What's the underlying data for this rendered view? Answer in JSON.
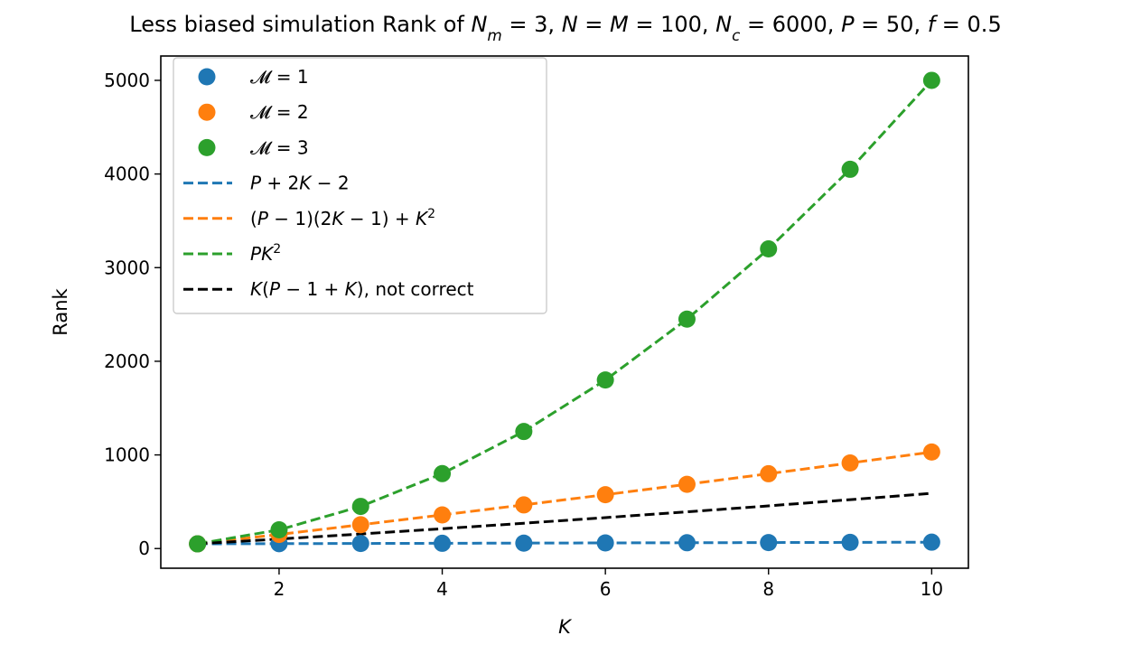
{
  "chart_data": {
    "type": "line",
    "title": "Less biased simulation Rank of N_m = 3, N = M = 100, N_c = 6000, P = 50, f = 0.5",
    "title_parts": [
      {
        "t": "Less biased simulation Rank of ",
        "i": false
      },
      {
        "t": "N",
        "i": true
      },
      {
        "t": "m",
        "i": true,
        "sub": true
      },
      {
        "t": " = 3, ",
        "i": false
      },
      {
        "t": "N",
        "i": true
      },
      {
        "t": " = ",
        "i": false
      },
      {
        "t": "M",
        "i": true
      },
      {
        "t": " = 100, ",
        "i": false
      },
      {
        "t": "N",
        "i": true
      },
      {
        "t": "c",
        "i": true,
        "sub": true
      },
      {
        "t": " = 6000, ",
        "i": false
      },
      {
        "t": "P",
        "i": true
      },
      {
        "t": " = 50, ",
        "i": false
      },
      {
        "t": "f",
        "i": true
      },
      {
        "t": " = 0.5",
        "i": false
      }
    ],
    "xlabel": "K",
    "ylabel": "Rank",
    "xlim": [
      0.55,
      10.45
    ],
    "ylim": [
      -210,
      5260
    ],
    "xticks": [
      2,
      4,
      6,
      8,
      10
    ],
    "yticks": [
      0,
      1000,
      2000,
      3000,
      4000,
      5000
    ],
    "grid": false,
    "legend_position": "upper-left",
    "colors": {
      "blue": "#1f77b4",
      "orange": "#ff7f0e",
      "green": "#2ca02c",
      "black": "#000000"
    },
    "scatter_series": [
      {
        "name": "𝓜 = 1",
        "color": "#1f77b4",
        "x": [
          1,
          2,
          3,
          4,
          5,
          6,
          7,
          8,
          9,
          10
        ],
        "y": [
          50,
          52,
          54,
          56,
          58,
          60,
          62,
          64,
          66,
          68
        ]
      },
      {
        "name": "𝓜 = 2",
        "color": "#ff7f0e",
        "x": [
          1,
          2,
          3,
          4,
          5,
          6,
          7,
          8,
          9,
          10
        ],
        "y": [
          50,
          151,
          254,
          359,
          466,
          575,
          686,
          799,
          914,
          1031
        ]
      },
      {
        "name": "𝓜 = 3",
        "color": "#2ca02c",
        "x": [
          1,
          2,
          3,
          4,
          5,
          6,
          7,
          8,
          9,
          10
        ],
        "y": [
          50,
          200,
          450,
          800,
          1250,
          1800,
          2450,
          3200,
          4050,
          5000
        ]
      }
    ],
    "line_series": [
      {
        "name": "P + 2K − 2",
        "color": "#1f77b4",
        "dashed": true,
        "x": [
          1,
          2,
          3,
          4,
          5,
          6,
          7,
          8,
          9,
          10
        ],
        "y": [
          50,
          52,
          54,
          56,
          58,
          60,
          62,
          64,
          66,
          68
        ]
      },
      {
        "name": "(P − 1)(2K − 1) + K²",
        "color": "#ff7f0e",
        "dashed": true,
        "x": [
          1,
          2,
          3,
          4,
          5,
          6,
          7,
          8,
          9,
          10
        ],
        "y": [
          50,
          151,
          254,
          359,
          466,
          575,
          686,
          799,
          914,
          1031
        ]
      },
      {
        "name": "PK²",
        "color": "#2ca02c",
        "dashed": true,
        "x": [
          1,
          2,
          3,
          4,
          5,
          6,
          7,
          8,
          9,
          10
        ],
        "y": [
          50,
          200,
          450,
          800,
          1250,
          1800,
          2450,
          3200,
          4050,
          5000
        ]
      },
      {
        "name": "K(P − 1 + K), not correct",
        "color": "#000000",
        "dashed": true,
        "x": [
          1,
          2,
          3,
          4,
          5,
          6,
          7,
          8,
          9,
          10
        ],
        "y": [
          50,
          102,
          156,
          212,
          270,
          330,
          392,
          456,
          522,
          590
        ]
      }
    ],
    "legend_entries": [
      {
        "kind": "marker",
        "color": "#1f77b4",
        "parts": [
          {
            "t": "𝓜",
            "i": false
          },
          {
            "t": " = 1",
            "i": false
          }
        ]
      },
      {
        "kind": "marker",
        "color": "#ff7f0e",
        "parts": [
          {
            "t": "𝓜",
            "i": false
          },
          {
            "t": " = 2",
            "i": false
          }
        ]
      },
      {
        "kind": "marker",
        "color": "#2ca02c",
        "parts": [
          {
            "t": "𝓜",
            "i": false
          },
          {
            "t": " = 3",
            "i": false
          }
        ]
      },
      {
        "kind": "dash",
        "color": "#1f77b4",
        "parts": [
          {
            "t": "P",
            "i": true
          },
          {
            "t": " + 2",
            "i": false
          },
          {
            "t": "K",
            "i": true
          },
          {
            "t": " − 2",
            "i": false
          }
        ]
      },
      {
        "kind": "dash",
        "color": "#ff7f0e",
        "parts": [
          {
            "t": "(",
            "i": false
          },
          {
            "t": "P",
            "i": true
          },
          {
            "t": " − 1)(2",
            "i": false
          },
          {
            "t": "K",
            "i": true
          },
          {
            "t": " − 1) + ",
            "i": false
          },
          {
            "t": "K",
            "i": true
          },
          {
            "t": "2",
            "i": false,
            "sup": true
          }
        ]
      },
      {
        "kind": "dash",
        "color": "#2ca02c",
        "parts": [
          {
            "t": "P",
            "i": true
          },
          {
            "t": "K",
            "i": true
          },
          {
            "t": "2",
            "i": false,
            "sup": true
          }
        ]
      },
      {
        "kind": "dash",
        "color": "#000000",
        "parts": [
          {
            "t": "K",
            "i": true
          },
          {
            "t": "(",
            "i": false
          },
          {
            "t": "P",
            "i": true
          },
          {
            "t": " − 1 + ",
            "i": false
          },
          {
            "t": "K",
            "i": true
          },
          {
            "t": "), not correct",
            "i": false
          }
        ]
      }
    ]
  }
}
